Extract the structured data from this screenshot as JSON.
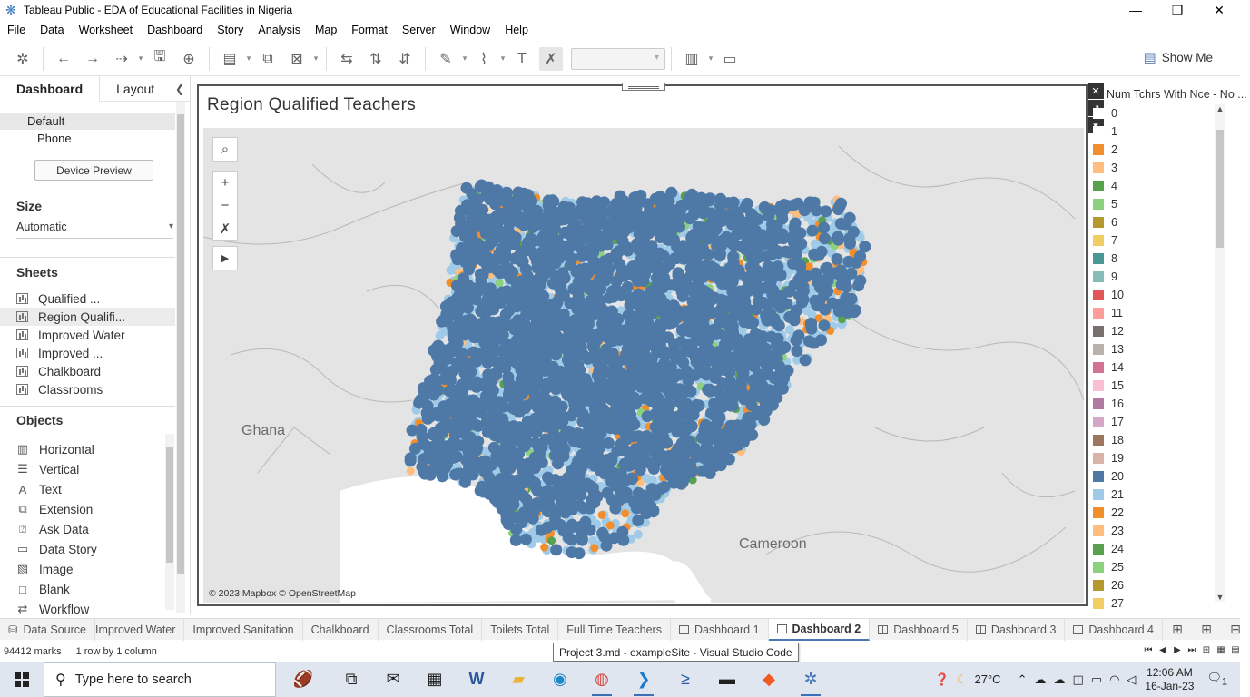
{
  "window": {
    "title": "Tableau Public - EDA of Educational Facilities in Nigeria",
    "controls": [
      "—",
      "❐",
      "✕"
    ]
  },
  "menu": [
    "File",
    "Data",
    "Worksheet",
    "Dashboard",
    "Story",
    "Analysis",
    "Map",
    "Format",
    "Server",
    "Window",
    "Help"
  ],
  "toolbar": {
    "show_me_label": "Show Me"
  },
  "left_panel": {
    "tabs": {
      "dashboard": "Dashboard",
      "layout": "Layout"
    },
    "device": {
      "items": [
        "Default",
        "Phone"
      ],
      "preview_button": "Device Preview"
    },
    "size": {
      "title": "Size",
      "value": "Automatic"
    },
    "sheets": {
      "title": "Sheets",
      "items": [
        "Qualified ...",
        "Region Qualifi...",
        "Improved Water",
        "Improved ...",
        "Chalkboard",
        "Classrooms"
      ]
    },
    "objects": {
      "title": "Objects",
      "items": [
        {
          "label": "Horizontal",
          "icon": "▥"
        },
        {
          "label": "Vertical",
          "icon": "☰"
        },
        {
          "label": "Text",
          "icon": "A"
        },
        {
          "label": "Extension",
          "icon": "⧉"
        },
        {
          "label": "Ask Data",
          "icon": "⍰"
        },
        {
          "label": "Data Story",
          "icon": "▭"
        },
        {
          "label": "Image",
          "icon": "▧"
        },
        {
          "label": "Blank",
          "icon": "□"
        },
        {
          "label": "Workflow",
          "icon": "⇄"
        }
      ]
    }
  },
  "viz": {
    "title": "Region Qualified Teachers",
    "attribution": "© 2023 Mapbox © OpenStreetMap",
    "map_labels": {
      "ghana": "Ghana",
      "cameroon": "Cameroon"
    }
  },
  "legend": {
    "title": "Num Tchrs With Nce - No ...",
    "items": [
      {
        "label": "0",
        "color": "#ffffff"
      },
      {
        "label": "1",
        "color": "#ffffff"
      },
      {
        "label": "2",
        "color": "#f28e2b"
      },
      {
        "label": "3",
        "color": "#ffbe7d"
      },
      {
        "label": "4",
        "color": "#59a14f"
      },
      {
        "label": "5",
        "color": "#8cd17d"
      },
      {
        "label": "6",
        "color": "#b6992d"
      },
      {
        "label": "7",
        "color": "#f1ce63"
      },
      {
        "label": "8",
        "color": "#499894"
      },
      {
        "label": "9",
        "color": "#86bcb6"
      },
      {
        "label": "10",
        "color": "#e15759"
      },
      {
        "label": "11",
        "color": "#ff9d9a"
      },
      {
        "label": "12",
        "color": "#79706e"
      },
      {
        "label": "13",
        "color": "#bab0ac"
      },
      {
        "label": "14",
        "color": "#d37295"
      },
      {
        "label": "15",
        "color": "#fabfd2"
      },
      {
        "label": "16",
        "color": "#b07aa1"
      },
      {
        "label": "17",
        "color": "#d4a6c8"
      },
      {
        "label": "18",
        "color": "#9d7660"
      },
      {
        "label": "19",
        "color": "#d7b5a6"
      },
      {
        "label": "20",
        "color": "#4e79a7"
      },
      {
        "label": "21",
        "color": "#a0cbe8"
      },
      {
        "label": "22",
        "color": "#f28e2b"
      },
      {
        "label": "23",
        "color": "#ffbe7d"
      },
      {
        "label": "24",
        "color": "#59a14f"
      },
      {
        "label": "25",
        "color": "#8cd17d"
      },
      {
        "label": "26",
        "color": "#b6992d"
      },
      {
        "label": "27",
        "color": "#f1ce63"
      }
    ]
  },
  "sheet_tabs": {
    "data_source": "Data Source",
    "tabs": [
      "Improved Water",
      "Improved Sanitation",
      "Chalkboard",
      "Classrooms Total",
      "Toilets Total",
      "Full Time Teachers"
    ],
    "dashboards": [
      "Dashboard 1",
      "Dashboard 2",
      "Dashboard 5",
      "Dashboard 3",
      "Dashboard 4"
    ],
    "selected": "Dashboard 2"
  },
  "status": {
    "marks": "94412 marks",
    "rows_cols": "1 row by 1 column",
    "tooltip": "Project 3.md - exampleSite - Visual Studio Code"
  },
  "taskbar": {
    "search_placeholder": "Type here to search",
    "temperature": "27°C",
    "time": "12:06 AM",
    "date": "16-Jan-23",
    "notifications": "1"
  },
  "colors": {
    "dark_blue": "#4e79a7",
    "light_blue": "#a0cbe8",
    "orange": "#f28e2b",
    "light_orange": "#ffbe7d",
    "green": "#59a14f",
    "light_green": "#8cd17d"
  }
}
